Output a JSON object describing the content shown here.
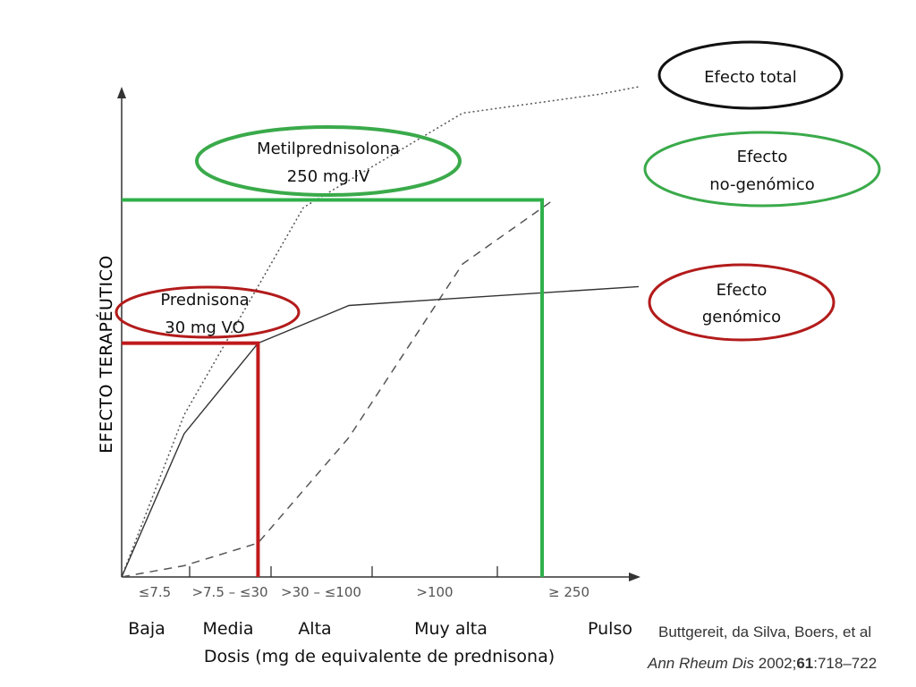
{
  "chart_data": {
    "type": "line",
    "ylabel": "EFECTO TERAPÉUTICO",
    "xlabel": "Dosis (mg de equivalente de prednisona)",
    "tick_labels": [
      "≤7.5",
      ">7.5 – ≤30",
      ">30 – ≤100",
      ">100",
      "≥ 250"
    ],
    "dose_categories": [
      "Baja",
      "Media",
      "Alta",
      "Muy alta",
      "Pulso"
    ],
    "series": [
      {
        "name": "Efecto total",
        "style": "dotted",
        "color": "#555555",
        "points": [
          [
            0,
            0
          ],
          [
            0.55,
            0.43
          ],
          [
            1.6,
            0.98
          ],
          [
            3,
            1.23
          ],
          [
            4.2,
            1.28
          ],
          [
            4.55,
            1.3
          ]
        ]
      },
      {
        "name": "Efecto no-genómico",
        "style": "dashed",
        "color": "#555555",
        "points": [
          [
            0,
            0
          ],
          [
            0.55,
            0.03
          ],
          [
            1.2,
            0.09
          ],
          [
            2,
            0.37
          ],
          [
            3,
            0.83
          ],
          [
            3.8,
            1.0
          ]
        ]
      },
      {
        "name": "Efecto genómico",
        "style": "solid",
        "color": "#333333",
        "points": [
          [
            0,
            0
          ],
          [
            0.55,
            0.38
          ],
          [
            1.2,
            0.62
          ],
          [
            2,
            0.72
          ],
          [
            3,
            0.74
          ],
          [
            4.55,
            0.77
          ]
        ]
      }
    ],
    "annotations": [
      {
        "text_lines": [
          "Metilprednisolona",
          "250 mg IV"
        ],
        "color": "#3aaa4a"
      },
      {
        "text_lines": [
          "Prednisona",
          "30 mg VO"
        ],
        "color": "#b31b1b"
      }
    ],
    "reference_lines": [
      {
        "name": "prednisona-30",
        "x": 1.2,
        "y": 0.62,
        "color": "#c0191b"
      },
      {
        "name": "metilprednisolona-250",
        "x": 3.7,
        "y": 1.0,
        "color": "#2fb04a"
      }
    ],
    "xlim": [
      0,
      4.55
    ],
    "ylim": [
      0,
      1.3
    ],
    "grid": false
  },
  "legend_labels": {
    "total": "Efecto total",
    "nogen": [
      "Efecto",
      "no-genómico"
    ],
    "gen": [
      "Efecto",
      "genómico"
    ]
  },
  "legend_colors": {
    "total": "#111111",
    "nogen": "#3aaa4a",
    "gen": "#b31b1b"
  },
  "citation": {
    "line1": "Buttgereit, da Silva, Boers, et al",
    "line2_journal": "Ann Rheum Dis",
    "line2_year": " 2002;",
    "line2_volume": "61",
    "line2_pages": ":718–722"
  }
}
